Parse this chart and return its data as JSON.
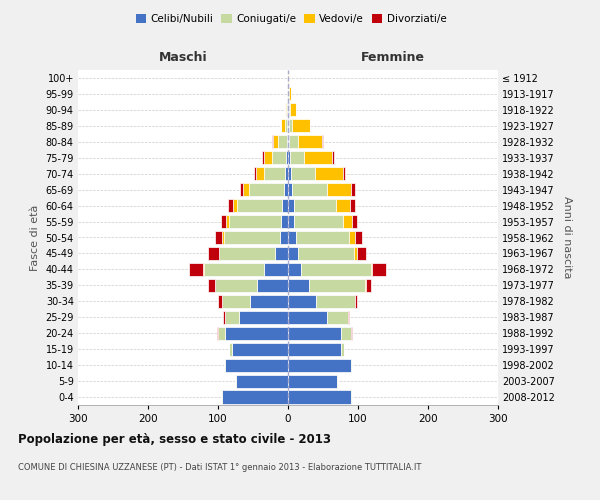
{
  "age_groups": [
    "0-4",
    "5-9",
    "10-14",
    "15-19",
    "20-24",
    "25-29",
    "30-34",
    "35-39",
    "40-44",
    "45-49",
    "50-54",
    "55-59",
    "60-64",
    "65-69",
    "70-74",
    "75-79",
    "80-84",
    "85-89",
    "90-94",
    "95-99",
    "100+"
  ],
  "birth_years": [
    "2008-2012",
    "2003-2007",
    "1998-2002",
    "1993-1997",
    "1988-1992",
    "1983-1987",
    "1978-1982",
    "1973-1977",
    "1968-1972",
    "1963-1967",
    "1958-1962",
    "1953-1957",
    "1948-1952",
    "1943-1947",
    "1938-1942",
    "1933-1937",
    "1928-1932",
    "1923-1927",
    "1918-1922",
    "1913-1917",
    "≤ 1912"
  ],
  "maschi": {
    "celibi": [
      95,
      75,
      90,
      80,
      90,
      70,
      55,
      45,
      35,
      18,
      12,
      10,
      8,
      6,
      4,
      3,
      2,
      1,
      1,
      1,
      0
    ],
    "coniugati": [
      1,
      1,
      2,
      5,
      10,
      20,
      40,
      60,
      85,
      80,
      80,
      75,
      65,
      50,
      30,
      20,
      12,
      4,
      2,
      1,
      0
    ],
    "vedovi": [
      0,
      0,
      0,
      0,
      0,
      0,
      0,
      0,
      1,
      1,
      2,
      3,
      5,
      8,
      12,
      12,
      8,
      5,
      2,
      0,
      0
    ],
    "divorziati": [
      0,
      0,
      0,
      0,
      1,
      3,
      5,
      10,
      20,
      15,
      10,
      8,
      8,
      5,
      2,
      2,
      1,
      0,
      0,
      0,
      0
    ]
  },
  "femmine": {
    "nubili": [
      90,
      70,
      90,
      75,
      75,
      55,
      40,
      30,
      18,
      14,
      12,
      9,
      8,
      5,
      4,
      3,
      2,
      1,
      1,
      0,
      0
    ],
    "coniugate": [
      1,
      1,
      2,
      5,
      15,
      30,
      55,
      80,
      100,
      80,
      75,
      70,
      60,
      50,
      35,
      20,
      12,
      5,
      2,
      1,
      0
    ],
    "vedove": [
      0,
      0,
      0,
      0,
      0,
      0,
      0,
      1,
      2,
      5,
      8,
      12,
      20,
      35,
      40,
      40,
      35,
      25,
      8,
      3,
      1
    ],
    "divorziate": [
      0,
      0,
      0,
      0,
      1,
      2,
      4,
      8,
      20,
      12,
      10,
      8,
      8,
      5,
      2,
      2,
      1,
      1,
      0,
      0,
      0
    ]
  },
  "colors": {
    "celibi": "#4472c4",
    "coniugati": "#c5d9a0",
    "vedovi": "#ffc000",
    "divorziati": "#c0000b"
  },
  "xlim": 300,
  "title": "Popolazione per età, sesso e stato civile - 2013",
  "subtitle": "COMUNE DI CHIESINA UZZANESE (PT) - Dati ISTAT 1° gennaio 2013 - Elaborazione TUTTITALIA.IT",
  "legend_labels": [
    "Celibi/Nubili",
    "Coniugati/e",
    "Vedovi/e",
    "Divorziati/e"
  ],
  "xlabel_left": "Maschi",
  "xlabel_right": "Femmine",
  "ylabel_left": "Fasce di età",
  "ylabel_right": "Anni di nascita",
  "bg_color": "#f0f0f0",
  "plot_bg": "#ffffff"
}
